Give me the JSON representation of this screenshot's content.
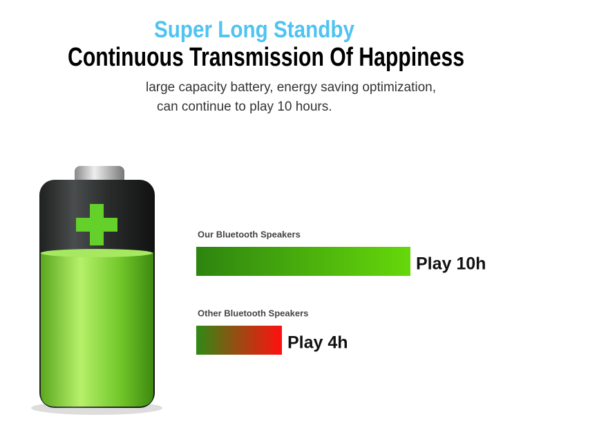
{
  "header": {
    "title": "Super Long Standby",
    "headline": "Continuous Transmission Of Happiness",
    "description": [
      "large capacity battery, energy saving optimization,",
      "can continue to play 10 hours."
    ]
  },
  "comparison": {
    "items": [
      {
        "label": "Our Bluetooth Speakers",
        "value": 10,
        "value_label": "Play 10h"
      },
      {
        "label": "Other Bluetooth Speakers",
        "value": 4,
        "value_label": "Play 4h"
      }
    ]
  }
}
